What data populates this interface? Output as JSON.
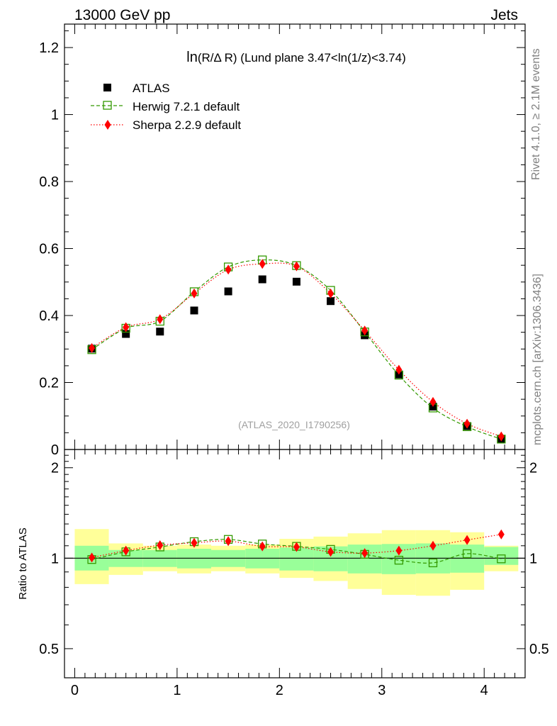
{
  "header": {
    "left": "13000 GeV pp",
    "right": "Jets"
  },
  "side_labels": {
    "rivet": "Rivet 4.1.0, ≥ 2.1M events",
    "mcplots": "mcplots.cern.ch [arXiv:1306.3436]"
  },
  "chart_data": [
    {
      "type": "scatter",
      "panel": "main",
      "title": "ln(R/Δ R) (Lund plane 3.47<ln(1/z)<3.74)",
      "title_parts": {
        "func": "ln",
        "paren": "(R/Δ R)",
        "rest": " (Lund plane 3.47<ln(1/z)<3.74)"
      },
      "analysis_tag": "(ATLAS_2020_I1790256)",
      "xlim": [
        -0.1,
        4.4
      ],
      "ylim": [
        0,
        1.27
      ],
      "yticks": [
        0,
        0.2,
        0.4,
        0.6,
        0.8,
        1,
        1.2
      ],
      "ytick_labels": [
        "0",
        "0.2",
        "0.4",
        "0.6",
        "0.8",
        "1",
        "1.2"
      ],
      "x": [
        0.167,
        0.5,
        0.833,
        1.167,
        1.5,
        1.833,
        2.167,
        2.5,
        2.833,
        3.167,
        3.5,
        3.833,
        4.167
      ],
      "series": [
        {
          "name": "ATLAS",
          "color": "#000000",
          "values": [
            0.301,
            0.345,
            0.352,
            0.415,
            0.472,
            0.508,
            0.501,
            0.443,
            0.341,
            0.224,
            0.128,
            0.07,
            0.031
          ]
        },
        {
          "name": "Herwig 7.2.1 default",
          "color": "#339900",
          "values": [
            0.298,
            0.362,
            0.383,
            0.471,
            0.545,
            0.566,
            0.549,
            0.475,
            0.351,
            0.222,
            0.124,
            0.068,
            0.031
          ]
        },
        {
          "name": "Sherpa 2.2.9 default",
          "color": "#ff0000",
          "values": [
            0.303,
            0.365,
            0.389,
            0.466,
            0.537,
            0.554,
            0.547,
            0.466,
            0.355,
            0.238,
            0.142,
            0.077,
            0.039
          ]
        }
      ]
    },
    {
      "type": "scatter",
      "panel": "ratio",
      "ylabel": "Ratio to ATLAS",
      "ylim": [
        0.4,
        2.3
      ],
      "scale": "log",
      "yticks": [
        0.5,
        1,
        2
      ],
      "ytick_labels": [
        "0.5",
        "1",
        "2"
      ],
      "xlim": [
        -0.1,
        4.4
      ],
      "xticks": [
        0,
        1,
        2,
        3,
        4
      ],
      "xtick_labels": [
        "0",
        "1",
        "2",
        "3",
        "4"
      ],
      "bins": [
        0,
        0.333,
        0.667,
        1,
        1.333,
        1.667,
        2,
        2.333,
        2.667,
        3,
        3.333,
        3.667,
        4,
        4.333
      ],
      "band_inner": [
        [
          0.91,
          1.1
        ],
        [
          0.935,
          1.065
        ],
        [
          0.935,
          1.065
        ],
        [
          0.925,
          1.075
        ],
        [
          0.935,
          1.065
        ],
        [
          0.925,
          1.075
        ],
        [
          0.91,
          1.085
        ],
        [
          0.905,
          1.095
        ],
        [
          0.89,
          1.11
        ],
        [
          0.885,
          1.115
        ],
        [
          0.89,
          1.12
        ],
        [
          0.895,
          1.11
        ],
        [
          0.95,
          1.09
        ]
      ],
      "band_outer": [
        [
          0.82,
          1.25
        ],
        [
          0.88,
          1.12
        ],
        [
          0.905,
          1.1
        ],
        [
          0.89,
          1.11
        ],
        [
          0.905,
          1.1
        ],
        [
          0.89,
          1.11
        ],
        [
          0.86,
          1.16
        ],
        [
          0.84,
          1.18
        ],
        [
          0.79,
          1.21
        ],
        [
          0.755,
          1.24
        ],
        [
          0.75,
          1.24
        ],
        [
          0.785,
          1.22
        ],
        [
          0.905,
          1.1
        ]
      ],
      "band_colors": {
        "inner": "#99ff99",
        "outer": "#ffff99"
      },
      "series": [
        {
          "name": "Herwig 7.2.1 default",
          "color": "#339900",
          "values": [
            0.99,
            1.05,
            1.09,
            1.135,
            1.155,
            1.115,
            1.095,
            1.07,
            1.03,
            0.985,
            0.965,
            1.035,
            0.995
          ]
        },
        {
          "name": "Sherpa 2.2.9 default",
          "color": "#ff0000",
          "values": [
            1.005,
            1.06,
            1.105,
            1.125,
            1.14,
            1.095,
            1.09,
            1.05,
            1.04,
            1.06,
            1.1,
            1.15,
            1.2
          ]
        }
      ]
    }
  ]
}
